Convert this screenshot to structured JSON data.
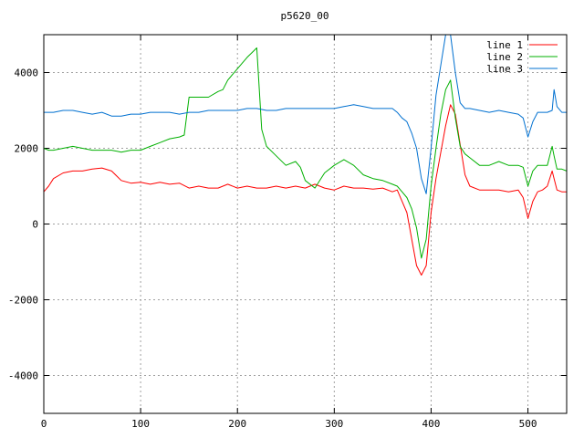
{
  "chart_data": {
    "type": "line",
    "title": "p5620_00",
    "xlabel": "",
    "ylabel": "",
    "xlim": [
      0,
      540
    ],
    "ylim": [
      -5000,
      5000
    ],
    "x_ticks": [
      0,
      100,
      200,
      300,
      400,
      500
    ],
    "y_ticks": [
      -4000,
      -2000,
      0,
      2000,
      4000
    ],
    "grid": true,
    "legend_position": "top-right",
    "series": [
      {
        "name": "line 1",
        "color": "#ff0000",
        "x": [
          0,
          5,
          10,
          20,
          30,
          40,
          50,
          60,
          70,
          80,
          90,
          100,
          110,
          120,
          130,
          140,
          150,
          160,
          170,
          180,
          190,
          200,
          210,
          220,
          230,
          240,
          250,
          260,
          270,
          280,
          290,
          300,
          310,
          320,
          330,
          340,
          350,
          360,
          365,
          370,
          375,
          380,
          385,
          390,
          395,
          400,
          405,
          410,
          415,
          420,
          425,
          430,
          435,
          440,
          450,
          460,
          470,
          480,
          490,
          495,
          500,
          505,
          510,
          515,
          520,
          525,
          527,
          530,
          535,
          540
        ],
        "y": [
          850,
          1000,
          1200,
          1350,
          1400,
          1400,
          1450,
          1480,
          1400,
          1150,
          1080,
          1100,
          1050,
          1100,
          1050,
          1080,
          950,
          1000,
          950,
          950,
          1050,
          950,
          1000,
          950,
          950,
          1000,
          950,
          1000,
          950,
          1050,
          950,
          900,
          1000,
          950,
          950,
          920,
          950,
          850,
          900,
          600,
          300,
          -400,
          -1100,
          -1350,
          -1100,
          300,
          1200,
          1900,
          2600,
          3150,
          2900,
          2100,
          1300,
          1000,
          900,
          900,
          900,
          850,
          900,
          700,
          150,
          600,
          850,
          900,
          1000,
          1400,
          1200,
          900,
          850,
          850
        ]
      },
      {
        "name": "line 2",
        "color": "#00b000",
        "x": [
          0,
          5,
          10,
          20,
          30,
          40,
          50,
          60,
          70,
          80,
          90,
          100,
          110,
          120,
          130,
          140,
          145,
          150,
          160,
          170,
          180,
          185,
          190,
          200,
          210,
          220,
          225,
          230,
          240,
          250,
          260,
          265,
          270,
          280,
          290,
          300,
          310,
          320,
          330,
          340,
          350,
          360,
          365,
          370,
          375,
          380,
          385,
          390,
          395,
          400,
          405,
          410,
          415,
          420,
          425,
          430,
          435,
          440,
          450,
          460,
          470,
          480,
          490,
          495,
          500,
          505,
          510,
          515,
          520,
          525,
          527,
          530,
          535,
          540
        ],
        "y": [
          2000,
          1950,
          1950,
          2000,
          2050,
          2000,
          1950,
          1950,
          1950,
          1900,
          1950,
          1950,
          2050,
          2150,
          2250,
          2300,
          2350,
          3350,
          3350,
          3350,
          3500,
          3550,
          3800,
          4100,
          4400,
          4650,
          2500,
          2050,
          1800,
          1550,
          1650,
          1500,
          1150,
          950,
          1350,
          1550,
          1700,
          1550,
          1300,
          1200,
          1150,
          1050,
          1000,
          850,
          700,
          400,
          -100,
          -900,
          -400,
          1000,
          2000,
          2900,
          3550,
          3800,
          2800,
          2050,
          1850,
          1750,
          1550,
          1550,
          1650,
          1550,
          1550,
          1500,
          1000,
          1400,
          1550,
          1550,
          1550,
          2050,
          1800,
          1450,
          1450,
          1400
        ]
      },
      {
        "name": "line 3",
        "color": "#0070d0",
        "x": [
          0,
          10,
          20,
          30,
          40,
          50,
          60,
          70,
          80,
          90,
          100,
          110,
          120,
          130,
          140,
          150,
          160,
          170,
          180,
          190,
          200,
          210,
          220,
          230,
          240,
          250,
          260,
          270,
          280,
          290,
          300,
          310,
          320,
          330,
          340,
          350,
          360,
          365,
          370,
          375,
          380,
          385,
          390,
          395,
          400,
          405,
          410,
          415,
          420,
          425,
          430,
          435,
          440,
          450,
          460,
          470,
          480,
          490,
          495,
          500,
          505,
          510,
          515,
          520,
          525,
          527,
          530,
          535,
          540
        ],
        "y": [
          2950,
          2950,
          3000,
          3000,
          2950,
          2900,
          2950,
          2850,
          2850,
          2900,
          2900,
          2950,
          2950,
          2950,
          2900,
          2950,
          2950,
          3000,
          3000,
          3000,
          3000,
          3050,
          3050,
          3000,
          3000,
          3050,
          3050,
          3050,
          3050,
          3050,
          3050,
          3100,
          3150,
          3100,
          3050,
          3050,
          3050,
          2950,
          2800,
          2700,
          2400,
          2000,
          1200,
          800,
          2000,
          3400,
          4200,
          5000,
          5000,
          4000,
          3200,
          3050,
          3050,
          3000,
          2950,
          3000,
          2950,
          2900,
          2800,
          2300,
          2700,
          2950,
          2950,
          2950,
          3000,
          3550,
          3100,
          2950,
          2950
        ]
      }
    ]
  }
}
